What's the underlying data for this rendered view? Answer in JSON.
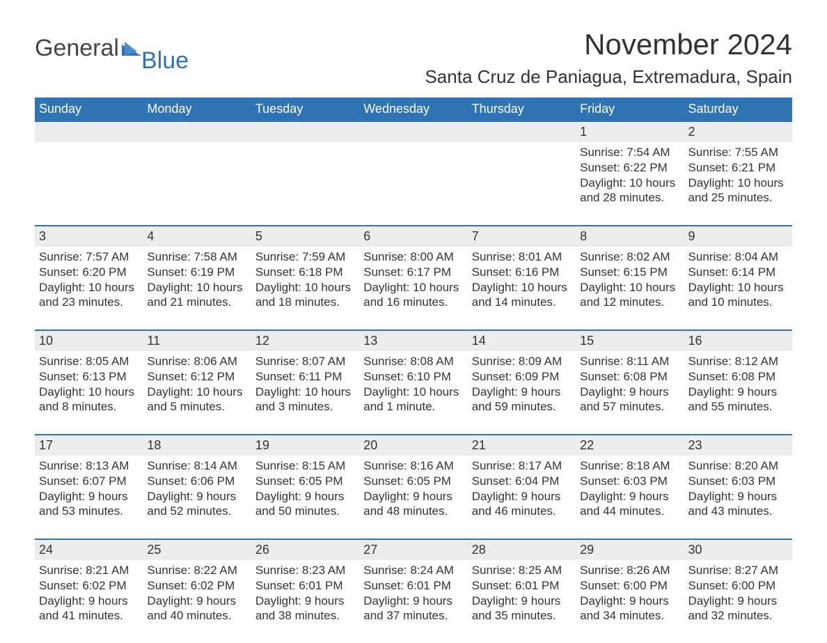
{
  "brand": {
    "dark": "General",
    "blue": "Blue"
  },
  "title": "November 2024",
  "subtitle": "Santa Cruz de Paniagua, Extremadura, Spain",
  "colors": {
    "header_bg": "#2e74b5",
    "header_text": "#ffffff",
    "daynum_bg": "#ececec",
    "week_border": "#2e74b5",
    "body_text": "#333333",
    "logo_blue": "#2e74b5",
    "page_bg": "#ffffff"
  },
  "day_headers": [
    "Sunday",
    "Monday",
    "Tuesday",
    "Wednesday",
    "Thursday",
    "Friday",
    "Saturday"
  ],
  "weeks": [
    [
      {
        "blank": true
      },
      {
        "blank": true
      },
      {
        "blank": true
      },
      {
        "blank": true
      },
      {
        "blank": true
      },
      {
        "num": "1",
        "sunrise": "7:54 AM",
        "sunset": "6:22 PM",
        "daylight": "10 hours and 28 minutes."
      },
      {
        "num": "2",
        "sunrise": "7:55 AM",
        "sunset": "6:21 PM",
        "daylight": "10 hours and 25 minutes."
      }
    ],
    [
      {
        "num": "3",
        "sunrise": "7:57 AM",
        "sunset": "6:20 PM",
        "daylight": "10 hours and 23 minutes."
      },
      {
        "num": "4",
        "sunrise": "7:58 AM",
        "sunset": "6:19 PM",
        "daylight": "10 hours and 21 minutes."
      },
      {
        "num": "5",
        "sunrise": "7:59 AM",
        "sunset": "6:18 PM",
        "daylight": "10 hours and 18 minutes."
      },
      {
        "num": "6",
        "sunrise": "8:00 AM",
        "sunset": "6:17 PM",
        "daylight": "10 hours and 16 minutes."
      },
      {
        "num": "7",
        "sunrise": "8:01 AM",
        "sunset": "6:16 PM",
        "daylight": "10 hours and 14 minutes."
      },
      {
        "num": "8",
        "sunrise": "8:02 AM",
        "sunset": "6:15 PM",
        "daylight": "10 hours and 12 minutes."
      },
      {
        "num": "9",
        "sunrise": "8:04 AM",
        "sunset": "6:14 PM",
        "daylight": "10 hours and 10 minutes."
      }
    ],
    [
      {
        "num": "10",
        "sunrise": "8:05 AM",
        "sunset": "6:13 PM",
        "daylight": "10 hours and 8 minutes."
      },
      {
        "num": "11",
        "sunrise": "8:06 AM",
        "sunset": "6:12 PM",
        "daylight": "10 hours and 5 minutes."
      },
      {
        "num": "12",
        "sunrise": "8:07 AM",
        "sunset": "6:11 PM",
        "daylight": "10 hours and 3 minutes."
      },
      {
        "num": "13",
        "sunrise": "8:08 AM",
        "sunset": "6:10 PM",
        "daylight": "10 hours and 1 minute."
      },
      {
        "num": "14",
        "sunrise": "8:09 AM",
        "sunset": "6:09 PM",
        "daylight": "9 hours and 59 minutes."
      },
      {
        "num": "15",
        "sunrise": "8:11 AM",
        "sunset": "6:08 PM",
        "daylight": "9 hours and 57 minutes."
      },
      {
        "num": "16",
        "sunrise": "8:12 AM",
        "sunset": "6:08 PM",
        "daylight": "9 hours and 55 minutes."
      }
    ],
    [
      {
        "num": "17",
        "sunrise": "8:13 AM",
        "sunset": "6:07 PM",
        "daylight": "9 hours and 53 minutes."
      },
      {
        "num": "18",
        "sunrise": "8:14 AM",
        "sunset": "6:06 PM",
        "daylight": "9 hours and 52 minutes."
      },
      {
        "num": "19",
        "sunrise": "8:15 AM",
        "sunset": "6:05 PM",
        "daylight": "9 hours and 50 minutes."
      },
      {
        "num": "20",
        "sunrise": "8:16 AM",
        "sunset": "6:05 PM",
        "daylight": "9 hours and 48 minutes."
      },
      {
        "num": "21",
        "sunrise": "8:17 AM",
        "sunset": "6:04 PM",
        "daylight": "9 hours and 46 minutes."
      },
      {
        "num": "22",
        "sunrise": "8:18 AM",
        "sunset": "6:03 PM",
        "daylight": "9 hours and 44 minutes."
      },
      {
        "num": "23",
        "sunrise": "8:20 AM",
        "sunset": "6:03 PM",
        "daylight": "9 hours and 43 minutes."
      }
    ],
    [
      {
        "num": "24",
        "sunrise": "8:21 AM",
        "sunset": "6:02 PM",
        "daylight": "9 hours and 41 minutes."
      },
      {
        "num": "25",
        "sunrise": "8:22 AM",
        "sunset": "6:02 PM",
        "daylight": "9 hours and 40 minutes."
      },
      {
        "num": "26",
        "sunrise": "8:23 AM",
        "sunset": "6:01 PM",
        "daylight": "9 hours and 38 minutes."
      },
      {
        "num": "27",
        "sunrise": "8:24 AM",
        "sunset": "6:01 PM",
        "daylight": "9 hours and 37 minutes."
      },
      {
        "num": "28",
        "sunrise": "8:25 AM",
        "sunset": "6:01 PM",
        "daylight": "9 hours and 35 minutes."
      },
      {
        "num": "29",
        "sunrise": "8:26 AM",
        "sunset": "6:00 PM",
        "daylight": "9 hours and 34 minutes."
      },
      {
        "num": "30",
        "sunrise": "8:27 AM",
        "sunset": "6:00 PM",
        "daylight": "9 hours and 32 minutes."
      }
    ]
  ],
  "labels": {
    "sunrise_prefix": "Sunrise: ",
    "sunset_prefix": "Sunset: ",
    "daylight_prefix": "Daylight: "
  }
}
